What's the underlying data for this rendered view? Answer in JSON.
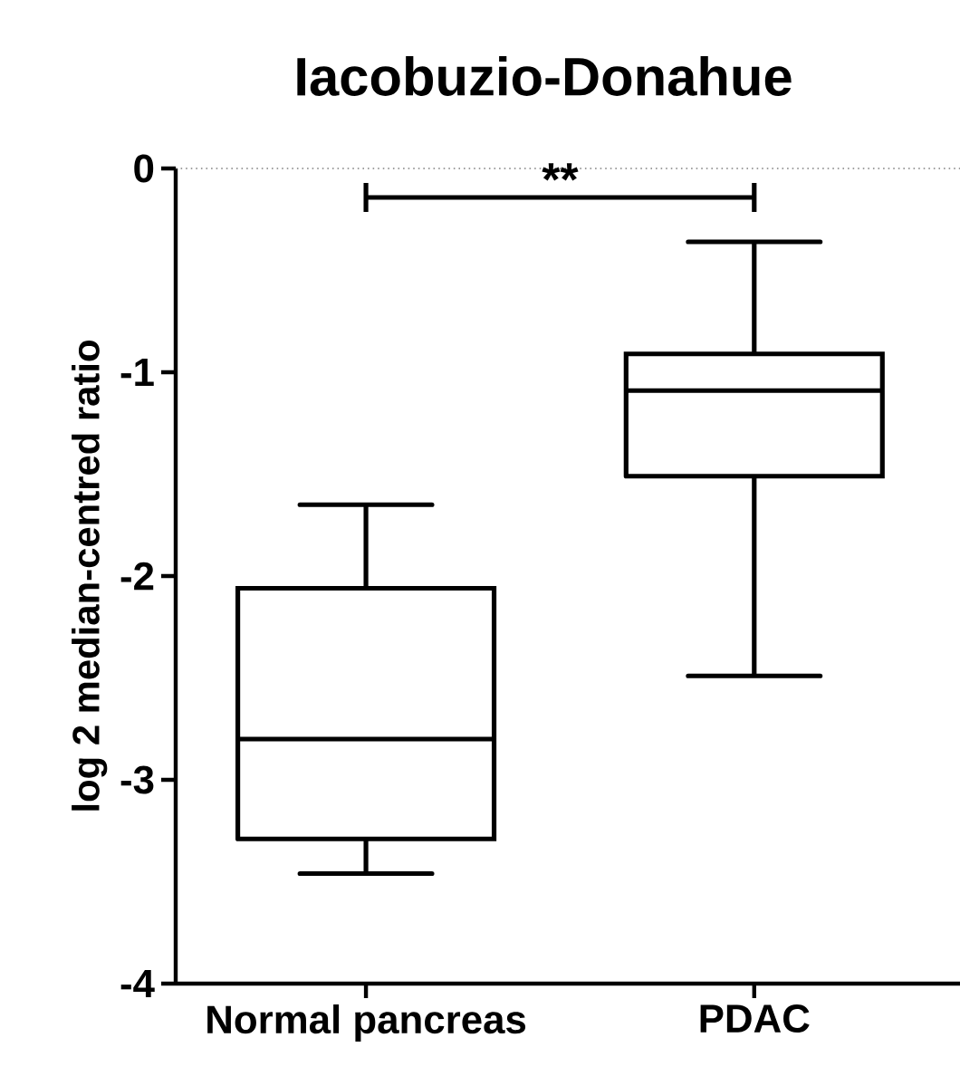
{
  "chart_data": {
    "type": "box",
    "title": "Iacobuzio-Donahue",
    "ylabel": "log 2 median-centred ratio",
    "categories": [
      "Normal pancreas",
      "PDAC"
    ],
    "boxes": [
      {
        "low": -3.46,
        "q1": -3.29,
        "median": -2.8,
        "q3": -2.06,
        "high": -1.65
      },
      {
        "low": -2.49,
        "q1": -1.51,
        "median": -1.09,
        "q3": -0.91,
        "high": -0.36
      }
    ],
    "color": "#000000",
    "ylim": [
      -4,
      0
    ],
    "yticks": [
      -4,
      -3,
      -2,
      -1,
      0
    ],
    "ref_lines": [
      {
        "axis": "y",
        "value": 0,
        "line_style": "dotted",
        "color": "#808080"
      }
    ],
    "annotations": [
      "**"
    ]
  }
}
